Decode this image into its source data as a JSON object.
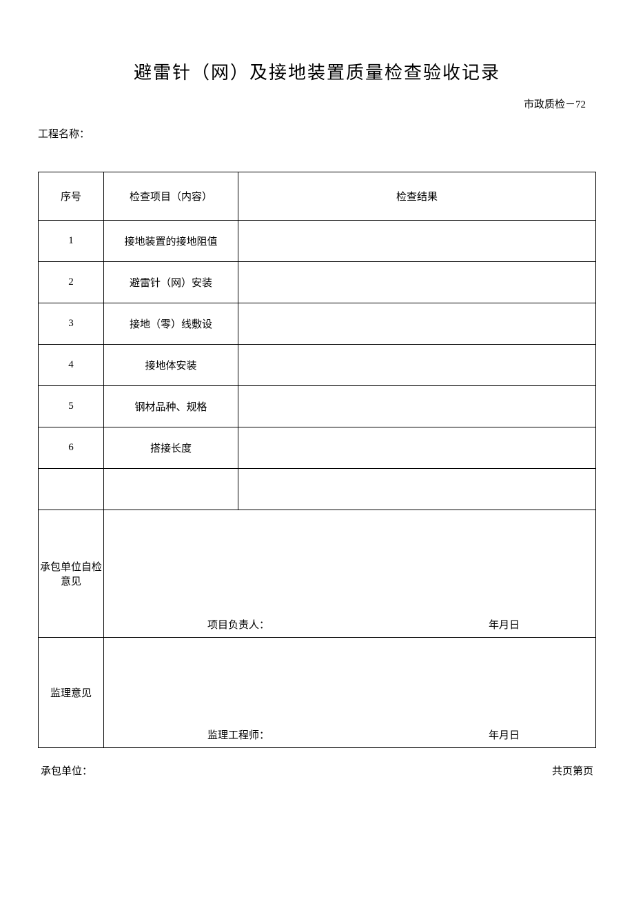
{
  "doc": {
    "title": "避雷针（网）及接地装置质量检查验收记录",
    "code": "市政质检－72",
    "project_label": "工程名称：",
    "headers": {
      "seq": "序号",
      "item": "检查项目（内容）",
      "result": "检查结果"
    },
    "rows": [
      {
        "seq": "1",
        "item": "接地装置的接地阻值",
        "result": ""
      },
      {
        "seq": "2",
        "item": "避雷针（网）安装",
        "result": ""
      },
      {
        "seq": "3",
        "item": "接地（零）线敷设",
        "result": ""
      },
      {
        "seq": "4",
        "item": "接地体安装",
        "result": ""
      },
      {
        "seq": "5",
        "item": "钢材品种、规格",
        "result": ""
      },
      {
        "seq": "6",
        "item": "搭接长度",
        "result": ""
      },
      {
        "seq": "",
        "item": "",
        "result": ""
      }
    ],
    "opinion1": {
      "label": "承包单位自检意见",
      "signer_label": "项目负责人：",
      "date_label": "年月日"
    },
    "opinion2": {
      "label": "监理意见",
      "signer_label": "监理工程师：",
      "date_label": "年月日"
    },
    "footer": {
      "contractor_label": "承包单位：",
      "page_label": "共页第页"
    }
  }
}
